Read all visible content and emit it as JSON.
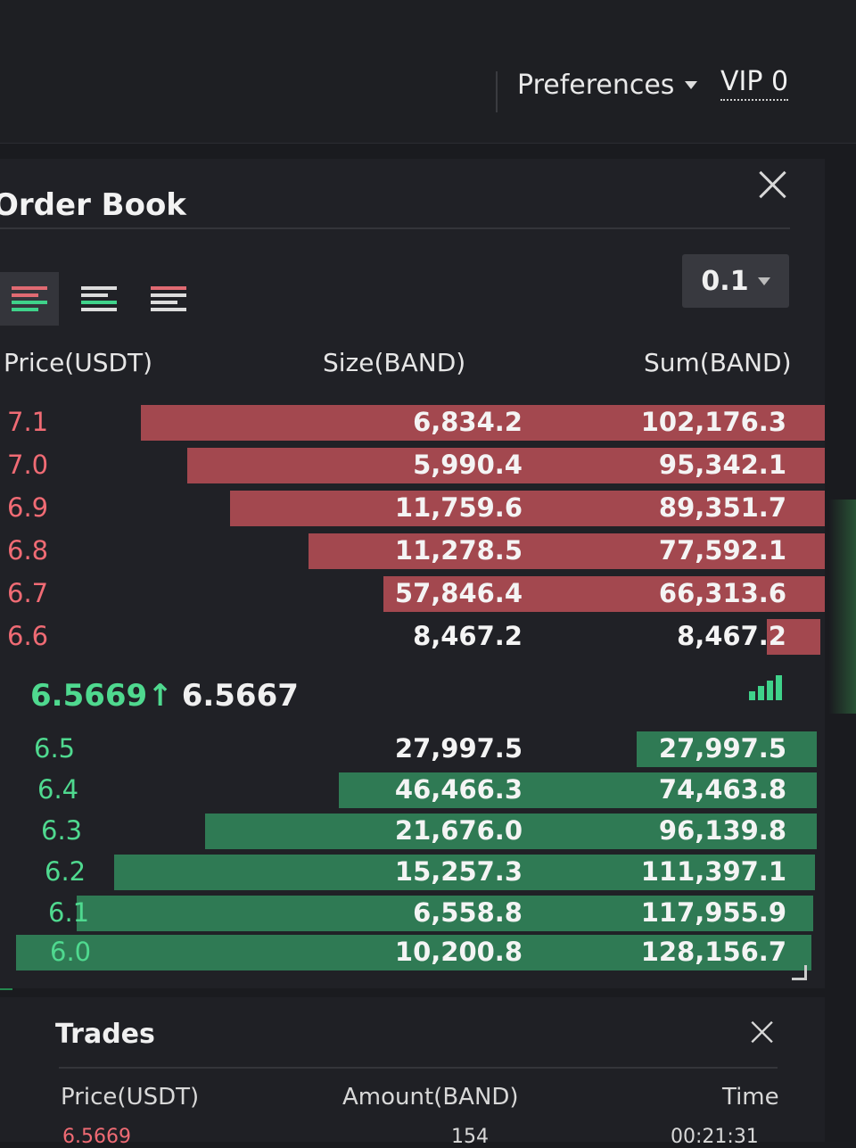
{
  "header": {
    "preferences_label": "Preferences",
    "vip_label": "VIP 0"
  },
  "order_book": {
    "title": "Order Book",
    "step_value": "0.1",
    "view_modes": [
      "both",
      "bids-only",
      "asks-only"
    ],
    "columns": {
      "price": "Price(USDT)",
      "size": "Size(BAND)",
      "sum": "Sum(BAND)"
    },
    "asks": [
      {
        "price": "7.1",
        "size": "6,834.2",
        "sum": "102,176.3"
      },
      {
        "price": "7.0",
        "size": "5,990.4",
        "sum": "95,342.1"
      },
      {
        "price": "6.9",
        "size": "11,759.6",
        "sum": "89,351.7"
      },
      {
        "price": "6.8",
        "size": "11,278.5",
        "sum": "77,592.1"
      },
      {
        "price": "6.7",
        "size": "57,846.4",
        "sum": "66,313.6"
      },
      {
        "price": "6.6",
        "size": "8,467.2",
        "sum": "8,467.2"
      }
    ],
    "last_price": "6.5669",
    "mark_price": "6.5667",
    "direction_glyph": "↑",
    "bids": [
      {
        "price": "6.5",
        "size": "27,997.5",
        "sum": "27,997.5"
      },
      {
        "price": "6.4",
        "size": "46,466.3",
        "sum": "74,463.8"
      },
      {
        "price": "6.3",
        "size": "21,676.0",
        "sum": "96,139.8"
      },
      {
        "price": "6.2",
        "size": "15,257.3",
        "sum": "111,397.1"
      },
      {
        "price": "6.1",
        "size": "6,558.8",
        "sum": "117,955.9"
      },
      {
        "price": "6.0",
        "size": "10,200.8",
        "sum": "128,156.7"
      }
    ]
  },
  "trades": {
    "title": "Trades",
    "columns": {
      "price": "Price(USDT)",
      "amount": "Amount(BAND)",
      "time": "Time"
    },
    "peek_row": {
      "price": "6.5669",
      "amount": "154",
      "time": "00:21:31"
    }
  },
  "colors": {
    "ask": "#a3484f",
    "bid": "#2f7a54",
    "ask_text": "#f06b74",
    "bid_text": "#4fd98f"
  }
}
